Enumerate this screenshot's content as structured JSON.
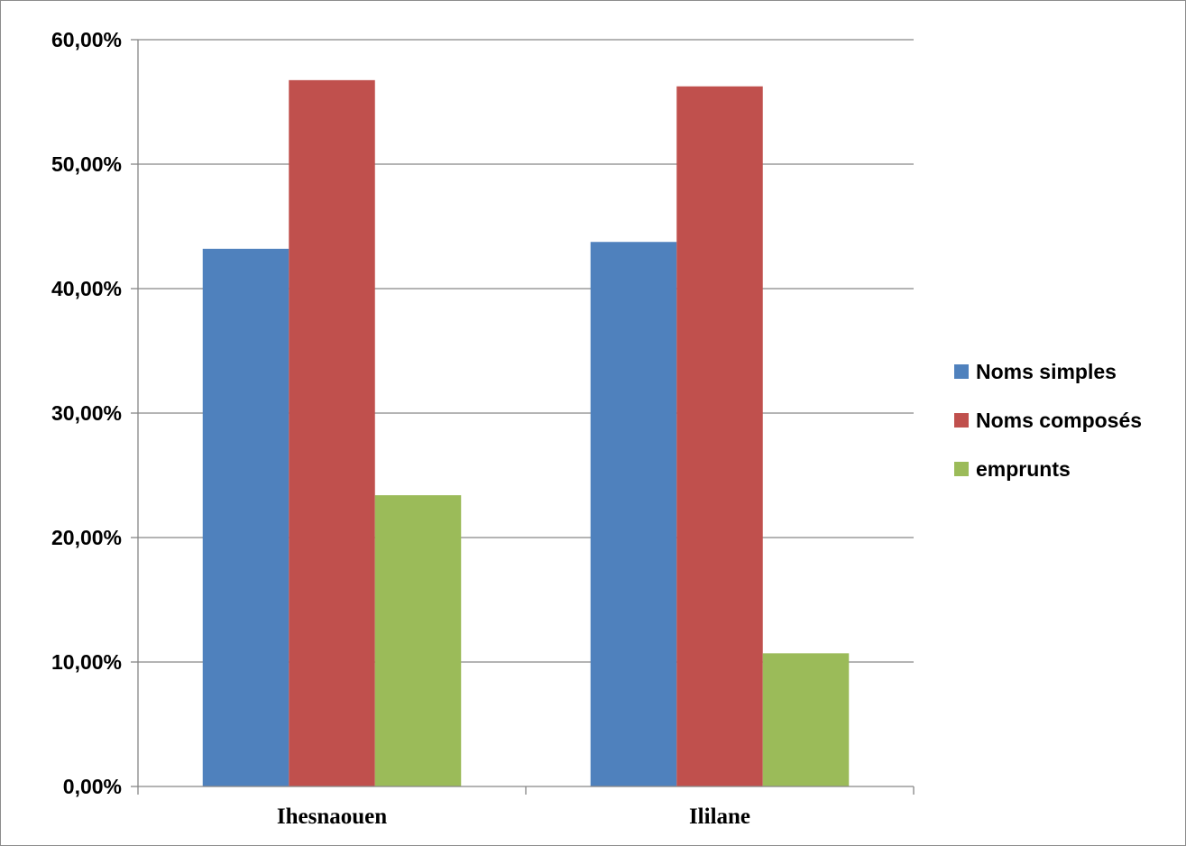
{
  "chart_data": {
    "type": "bar",
    "categories": [
      "Ihesnaouen",
      "Ililane"
    ],
    "series": [
      {
        "name": "Noms simples",
        "values": [
          0.432,
          0.4375
        ],
        "color": "#4f81bd"
      },
      {
        "name": "Noms composés",
        "values": [
          0.5675,
          0.5625
        ],
        "color": "#c0504d"
      },
      {
        "name": "emprunts",
        "values": [
          0.234,
          0.107
        ],
        "color": "#9bbb59"
      }
    ],
    "ylim": [
      0,
      0.6
    ],
    "yticks": [
      0,
      0.1,
      0.2,
      0.3,
      0.4,
      0.5,
      0.6
    ],
    "ytick_labels": [
      "0,00%",
      "10,00%",
      "20,00%",
      "30,00%",
      "40,00%",
      "50,00%",
      "60,00%"
    ],
    "grid": true,
    "legend_position": "right",
    "gridline_color": "#868686",
    "title": "",
    "xlabel": "",
    "ylabel": ""
  }
}
